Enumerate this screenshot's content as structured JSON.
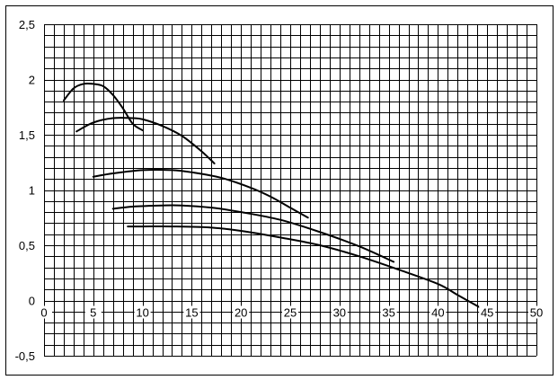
{
  "chart_data": {
    "type": "line",
    "title": "",
    "xlabel": "",
    "ylabel": "",
    "xlim": [
      0,
      50
    ],
    "ylim": [
      -0.5,
      2.5
    ],
    "x_ticks": [
      0,
      5,
      10,
      15,
      20,
      25,
      30,
      35,
      40,
      45,
      50
    ],
    "y_ticks": [
      -0.5,
      0,
      0.5,
      1,
      1.5,
      2,
      2.5
    ],
    "x_tick_labels": [
      "0",
      "5",
      "10",
      "15",
      "20",
      "25",
      "30",
      "35",
      "40",
      "45",
      "50"
    ],
    "y_tick_labels": [
      "-0,5",
      "0",
      "0,5",
      "1",
      "1,5",
      "2",
      "2,5"
    ],
    "grid": true,
    "grid_minor_x": 1,
    "grid_minor_y": 0.1,
    "legend": "none",
    "series": [
      {
        "x": [
          2,
          3,
          4,
          5,
          6,
          7,
          8,
          9,
          10
        ],
        "y": [
          1.81,
          1.92,
          1.96,
          1.96,
          1.94,
          1.86,
          1.74,
          1.6,
          1.54
        ]
      },
      {
        "x": [
          3.3,
          5,
          7,
          9,
          10,
          12,
          14,
          16,
          17.3
        ],
        "y": [
          1.53,
          1.61,
          1.65,
          1.65,
          1.64,
          1.58,
          1.49,
          1.35,
          1.24
        ]
      },
      {
        "x": [
          5,
          7,
          10,
          13,
          15,
          18,
          21,
          23,
          25,
          26.8
        ],
        "y": [
          1.12,
          1.15,
          1.18,
          1.18,
          1.16,
          1.11,
          1.02,
          0.94,
          0.84,
          0.75
        ]
      },
      {
        "x": [
          7,
          9,
          12,
          14,
          17,
          20,
          24,
          28,
          32,
          35.5
        ],
        "y": [
          0.83,
          0.85,
          0.86,
          0.86,
          0.84,
          0.8,
          0.73,
          0.62,
          0.49,
          0.35
        ]
      },
      {
        "x": [
          8.5,
          10,
          13,
          17,
          20,
          24,
          28,
          32,
          36,
          40,
          42,
          44.2
        ],
        "y": [
          0.67,
          0.67,
          0.67,
          0.66,
          0.63,
          0.57,
          0.5,
          0.4,
          0.28,
          0.15,
          0.05,
          -0.06
        ]
      }
    ]
  }
}
